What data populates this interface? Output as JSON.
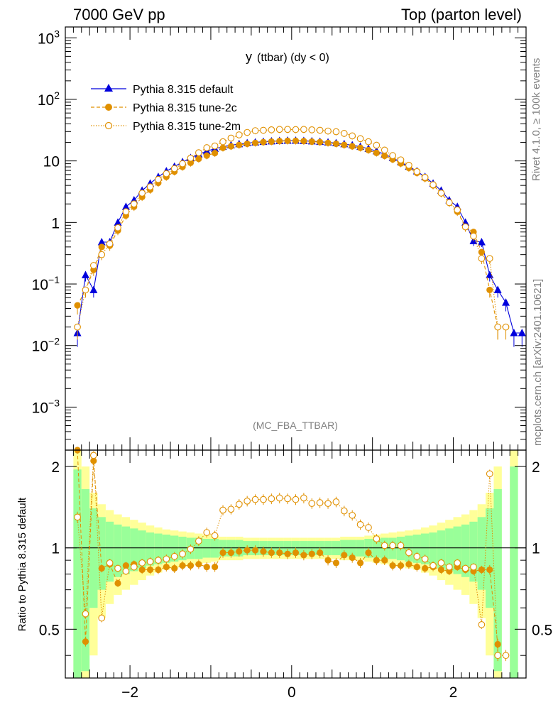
{
  "header": {
    "left": "7000 GeV pp",
    "right": "Top (parton level)"
  },
  "side": {
    "rivet": "Rivet 4.1.0, ≥ 100k events",
    "mcplots": "mcplots.cern.ch [arXiv:2401.10621]"
  },
  "chart_data": {
    "type": "line",
    "title": "y (ttbar) (dy < 0)",
    "title_main": "y",
    "title_sub": "(ttbar) (dy < 0)",
    "watermark": "(MC_FBA_TTBAR)",
    "xlabel": "",
    "ylabel": "",
    "ratio_ylabel": "Ratio to Pythia 8.315 default",
    "xlim": [
      -2.8,
      2.9
    ],
    "ylim": [
      0.0002,
      1500
    ],
    "ratio_ylim": [
      0.33,
      2.3
    ],
    "x_ticks": [
      {
        "v": -2,
        "t": "−2"
      },
      {
        "v": 0,
        "t": "0"
      },
      {
        "v": 2,
        "t": "2"
      }
    ],
    "y_ticks": [
      {
        "v": 0.001,
        "b": "10",
        "e": "−3"
      },
      {
        "v": 0.01,
        "b": "10",
        "e": "−2"
      },
      {
        "v": 0.1,
        "b": "10",
        "e": "−1"
      },
      {
        "v": 1,
        "b": "1",
        "e": ""
      },
      {
        "v": 10,
        "b": "10",
        "e": ""
      },
      {
        "v": 100,
        "b": "10",
        "e": "2"
      },
      {
        "v": 1000,
        "b": "10",
        "e": "3"
      }
    ],
    "ratio_ticks": [
      {
        "v": 0.5,
        "t": "0.5"
      },
      {
        "v": 1,
        "t": "1"
      },
      {
        "v": 2,
        "t": "2"
      }
    ],
    "series": [
      {
        "name": "Pythia 8.315 default",
        "color": "#0000dd",
        "marker": "triangle",
        "x": [
          -2.65,
          -2.55,
          -2.45,
          -2.35,
          -2.25,
          -2.15,
          -2.05,
          -1.95,
          -1.85,
          -1.75,
          -1.65,
          -1.55,
          -1.45,
          -1.35,
          -1.25,
          -1.15,
          -1.05,
          -0.95,
          -0.85,
          -0.75,
          -0.65,
          -0.55,
          -0.45,
          -0.35,
          -0.25,
          -0.15,
          -0.05,
          0.05,
          0.15,
          0.25,
          0.35,
          0.45,
          0.55,
          0.65,
          0.75,
          0.85,
          0.95,
          1.05,
          1.15,
          1.25,
          1.35,
          1.45,
          1.55,
          1.65,
          1.75,
          1.85,
          1.95,
          2.05,
          2.15,
          2.25,
          2.35,
          2.45,
          2.55,
          2.65,
          2.75,
          2.85
        ],
        "y": [
          0.016,
          0.14,
          0.08,
          0.48,
          0.48,
          1.0,
          1.8,
          2.3,
          3.3,
          4.3,
          5.5,
          6.8,
          8.1,
          9.6,
          11.2,
          12.8,
          14.4,
          15.8,
          17.0,
          18.0,
          18.8,
          19.5,
          20.0,
          20.5,
          20.9,
          21.2,
          21.4,
          21.4,
          21.2,
          20.9,
          20.5,
          20.0,
          19.5,
          18.8,
          18.0,
          17.0,
          15.8,
          14.4,
          12.8,
          11.2,
          9.6,
          8.1,
          6.8,
          5.5,
          4.3,
          3.3,
          2.3,
          1.8,
          1.0,
          0.5,
          0.48,
          0.14,
          0.08,
          0.05,
          0.016,
          0.016
        ]
      },
      {
        "name": "Pythia 8.315 tune-2c",
        "color": "#e09000",
        "marker": "circle",
        "x": [
          -2.65,
          -2.55,
          -2.45,
          -2.35,
          -2.25,
          -2.15,
          -2.05,
          -1.95,
          -1.85,
          -1.75,
          -1.65,
          -1.55,
          -1.45,
          -1.35,
          -1.25,
          -1.15,
          -1.05,
          -0.95,
          -0.85,
          -0.75,
          -0.65,
          -0.55,
          -0.45,
          -0.35,
          -0.25,
          -0.15,
          -0.05,
          0.05,
          0.15,
          0.25,
          0.35,
          0.45,
          0.55,
          0.65,
          0.75,
          0.85,
          0.95,
          1.05,
          1.15,
          1.25,
          1.35,
          1.45,
          1.55,
          1.65,
          1.75,
          1.85,
          1.95,
          2.05,
          2.15,
          2.25,
          2.35,
          2.45,
          2.55
        ],
        "y": [
          0.045,
          0.08,
          0.17,
          0.4,
          0.42,
          0.74,
          1.3,
          1.8,
          2.6,
          3.4,
          4.4,
          5.5,
          6.7,
          8.0,
          9.3,
          10.8,
          12.2,
          13.4,
          16.3,
          17.3,
          18.2,
          19.0,
          19.6,
          20.2,
          20.6,
          21.0,
          21.2,
          21.2,
          21.0,
          20.6,
          20.2,
          19.6,
          19.0,
          18.2,
          17.3,
          16.3,
          15.0,
          13.5,
          12.1,
          10.6,
          9.1,
          7.7,
          6.4,
          5.2,
          4.0,
          3.0,
          2.1,
          1.5,
          0.84,
          0.7,
          0.33,
          0.08,
          0.02
        ],
        "ratio": [
          2.5,
          0.45,
          2.1,
          0.84,
          0.87,
          0.74,
          0.86,
          0.87,
          0.83,
          0.83,
          0.83,
          0.85,
          0.84,
          0.86,
          0.86,
          0.87,
          0.85,
          0.85,
          0.96,
          0.96,
          0.97,
          0.98,
          0.98,
          0.97,
          0.96,
          0.96,
          0.95,
          0.96,
          0.94,
          0.95,
          0.96,
          0.9,
          0.88,
          0.94,
          0.92,
          0.88,
          0.96,
          0.9,
          0.9,
          0.86,
          0.86,
          0.87,
          0.85,
          0.84,
          0.85,
          0.83,
          0.82,
          0.85,
          0.83,
          0.82,
          0.83,
          0.83,
          0.44
        ]
      },
      {
        "name": "Pythia 8.315 tune-2m",
        "color": "#e09000",
        "marker": "open-circle",
        "x": [
          -2.65,
          -2.55,
          -2.45,
          -2.35,
          -2.25,
          -2.15,
          -2.05,
          -1.95,
          -1.85,
          -1.75,
          -1.65,
          -1.55,
          -1.45,
          -1.35,
          -1.25,
          -1.15,
          -1.05,
          -0.95,
          -0.85,
          -0.75,
          -0.65,
          -0.55,
          -0.45,
          -0.35,
          -0.25,
          -0.15,
          -0.05,
          0.05,
          0.15,
          0.25,
          0.35,
          0.45,
          0.55,
          0.65,
          0.75,
          0.85,
          0.95,
          1.05,
          1.15,
          1.25,
          1.35,
          1.45,
          1.55,
          1.65,
          1.75,
          1.85,
          1.95,
          2.05,
          2.15,
          2.25,
          2.35,
          2.45,
          2.55,
          2.65
        ],
        "y": [
          0.02,
          0.08,
          0.2,
          0.3,
          0.45,
          0.82,
          1.5,
          2.0,
          3.0,
          3.8,
          5.0,
          6.2,
          7.5,
          9.0,
          11.1,
          13.6,
          16.4,
          17.5,
          20.5,
          23.5,
          26.5,
          29.0,
          31.0,
          31.5,
          32.0,
          32.5,
          32.5,
          32.3,
          32.5,
          32.0,
          31.5,
          30.6,
          29.8,
          28.0,
          25.5,
          23.0,
          20.5,
          18.0,
          15.0,
          12.2,
          10.4,
          8.5,
          6.7,
          5.4,
          4.1,
          3.0,
          2.1,
          1.6,
          0.85,
          0.6,
          0.26,
          0.26,
          0.02,
          0.02
        ],
        "ratio": [
          1.3,
          0.57,
          2.2,
          0.55,
          0.88,
          0.84,
          0.82,
          0.85,
          0.88,
          0.89,
          0.9,
          0.91,
          0.93,
          0.95,
          0.99,
          1.06,
          1.14,
          1.11,
          1.38,
          1.39,
          1.45,
          1.49,
          1.51,
          1.51,
          1.52,
          1.53,
          1.52,
          1.51,
          1.53,
          1.46,
          1.47,
          1.46,
          1.48,
          1.37,
          1.32,
          1.22,
          1.19,
          1.08,
          1.02,
          1.02,
          1.02,
          0.96,
          0.93,
          0.91,
          0.86,
          0.88,
          0.85,
          0.88,
          0.84,
          0.85,
          0.52,
          1.88,
          0.4,
          0.4
        ]
      }
    ],
    "ratio_band": {
      "x_edges": [
        -2.7,
        -2.6,
        -2.5,
        -2.4,
        -2.3,
        -2.2,
        -2.1,
        -2.0,
        -1.9,
        -1.8,
        -1.7,
        -1.6,
        -1.5,
        -1.4,
        -1.3,
        -1.2,
        -1.1,
        -1.0,
        -0.9,
        -0.8,
        -0.7,
        -0.6,
        -0.5,
        -0.4,
        -0.3,
        -0.2,
        -0.1,
        0.0,
        0.1,
        0.2,
        0.3,
        0.4,
        0.5,
        0.6,
        0.7,
        0.8,
        0.9,
        1.0,
        1.1,
        1.2,
        1.3,
        1.4,
        1.5,
        1.6,
        1.7,
        1.8,
        1.9,
        2.0,
        2.1,
        2.2,
        2.3,
        2.4,
        2.5,
        2.6,
        2.7,
        2.8
      ],
      "green": [
        0.95,
        0.65,
        0.4,
        0.3,
        0.25,
        0.22,
        0.2,
        0.18,
        0.16,
        0.14,
        0.13,
        0.12,
        0.11,
        0.1,
        0.09,
        0.09,
        0.08,
        0.08,
        0.07,
        0.07,
        0.07,
        0.06,
        0.06,
        0.06,
        0.06,
        0.06,
        0.06,
        0.06,
        0.06,
        0.06,
        0.06,
        0.06,
        0.06,
        0.07,
        0.07,
        0.07,
        0.08,
        0.08,
        0.09,
        0.09,
        0.1,
        0.11,
        0.12,
        0.13,
        0.14,
        0.16,
        0.18,
        0.2,
        0.22,
        0.25,
        0.3,
        0.4,
        0.65,
        0.0,
        1.0
      ],
      "yellow": [
        1.5,
        1.0,
        0.6,
        0.45,
        0.38,
        0.33,
        0.3,
        0.27,
        0.24,
        0.21,
        0.19,
        0.17,
        0.16,
        0.15,
        0.14,
        0.13,
        0.12,
        0.11,
        0.1,
        0.1,
        0.1,
        0.09,
        0.09,
        0.09,
        0.09,
        0.09,
        0.09,
        0.09,
        0.09,
        0.09,
        0.09,
        0.09,
        0.09,
        0.1,
        0.1,
        0.1,
        0.11,
        0.12,
        0.13,
        0.14,
        0.15,
        0.16,
        0.17,
        0.19,
        0.21,
        0.24,
        0.27,
        0.3,
        0.33,
        0.38,
        0.45,
        0.6,
        1.0,
        0.0,
        1.4
      ]
    }
  }
}
